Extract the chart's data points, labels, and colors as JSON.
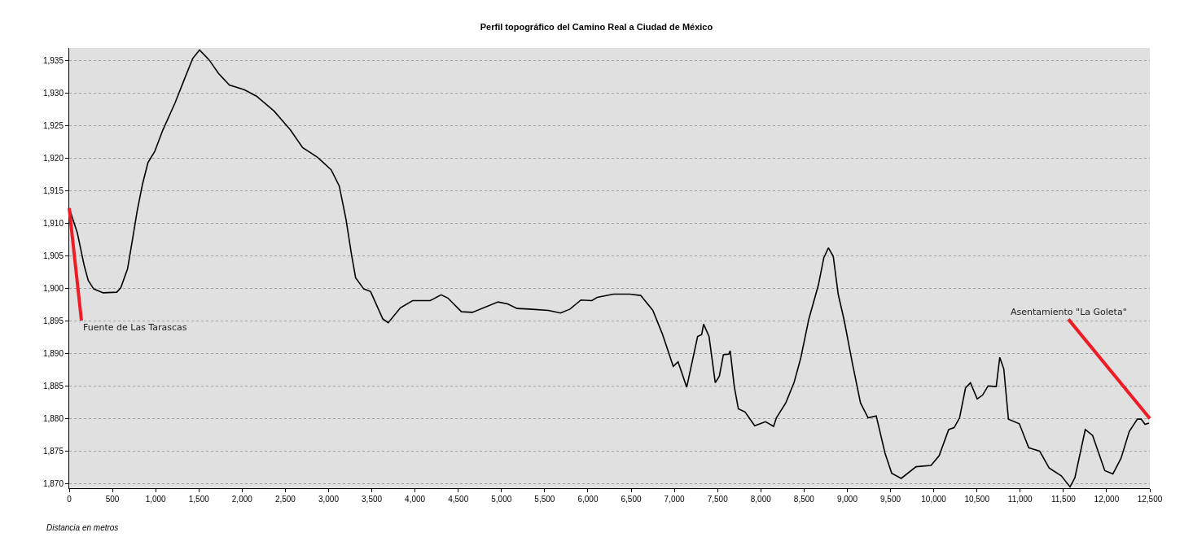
{
  "chart_data": {
    "type": "line",
    "title": "Perfil topográfico del Camino Real a Ciudad de México",
    "xlabel": "Distancia en metros",
    "x": [
      0,
      94,
      173,
      220,
      283,
      393,
      550,
      597,
      675,
      738,
      785,
      848,
      911,
      989,
      1083,
      1225,
      1335,
      1429,
      1507,
      1617,
      1727,
      1853,
      2025,
      2167,
      2371,
      2559,
      2700,
      2873,
      3030,
      3124,
      3203,
      3266,
      3313,
      3407,
      3486,
      3627,
      3690,
      3831,
      3972,
      4176,
      4302,
      4380,
      4537,
      4663,
      4961,
      5071,
      5181,
      5322,
      5542,
      5683,
      5793,
      5919,
      6045,
      6107,
      6295,
      6484,
      6610,
      6751,
      6861,
      6987,
      7043,
      7143,
      7269,
      7316,
      7338,
      7401,
      7473,
      7520,
      7567,
      7630,
      7646,
      7693,
      7740,
      7818,
      7929,
      8054,
      8148,
      8180,
      8289,
      8384,
      8462,
      8556,
      8666,
      8729,
      8782,
      8838,
      8895,
      8964,
      9059,
      9153,
      9241,
      9335,
      9436,
      9514,
      9624,
      9796,
      9969,
      10063,
      10173,
      10236,
      10299,
      10368,
      10425,
      10503,
      10566,
      10629,
      10723,
      10764,
      10811,
      10864,
      10990,
      11099,
      11225,
      11335,
      11476,
      11577,
      11633,
      11753,
      11838,
      11979,
      12073,
      12167,
      12262,
      12356,
      12400,
      12445,
      12490
    ],
    "series": [
      {
        "color": "#000000",
        "values": [
          1912.3,
          1908.5,
          1903.5,
          1901.2,
          1899.9,
          1899.3,
          1899.4,
          1900.1,
          1903.0,
          1908.0,
          1911.8,
          1916.0,
          1919.3,
          1921.0,
          1924.3,
          1928.5,
          1932.2,
          1935.3,
          1936.6,
          1935.1,
          1933.0,
          1931.2,
          1930.5,
          1929.5,
          1927.2,
          1924.3,
          1921.6,
          1920.1,
          1918.2,
          1915.7,
          1910.5,
          1905.1,
          1901.6,
          1899.9,
          1899.5,
          1895.3,
          1894.7,
          1897.0,
          1898.1,
          1898.1,
          1899.0,
          1898.5,
          1896.4,
          1896.3,
          1897.9,
          1897.6,
          1896.9,
          1896.8,
          1896.6,
          1896.2,
          1896.8,
          1898.2,
          1898.1,
          1898.6,
          1899.1,
          1899.1,
          1898.9,
          1896.6,
          1893.0,
          1888.0,
          1888.7,
          1884.8,
          1892.6,
          1892.9,
          1894.5,
          1892.6,
          1885.5,
          1886.5,
          1889.8,
          1889.9,
          1890.4,
          1884.9,
          1881.5,
          1881.0,
          1878.9,
          1879.5,
          1878.8,
          1880.1,
          1882.4,
          1885.5,
          1889.3,
          1895.3,
          1900.5,
          1904.7,
          1906.2,
          1904.9,
          1899.1,
          1895.1,
          1888.5,
          1882.4,
          1880.1,
          1880.4,
          1874.7,
          1871.6,
          1870.8,
          1872.6,
          1872.8,
          1874.3,
          1878.3,
          1878.6,
          1880.1,
          1884.7,
          1885.5,
          1883.0,
          1883.6,
          1885.0,
          1884.9,
          1889.4,
          1887.6,
          1879.9,
          1879.2,
          1875.5,
          1875.0,
          1872.4,
          1871.2,
          1869.5,
          1870.9,
          1878.3,
          1877.4,
          1872.0,
          1871.5,
          1873.9,
          1878.0,
          1879.9,
          1879.9,
          1879.1,
          1879.3
        ]
      }
    ],
    "xlim": [
      0,
      12500
    ],
    "xticks": [
      0,
      500,
      {
        "value": 1000,
        "label": "1,000"
      },
      {
        "value": 1500,
        "label": "1,500"
      },
      {
        "value": 2000,
        "label": "2,000"
      },
      {
        "value": 2500,
        "label": "2,500"
      },
      {
        "value": 3000,
        "label": "3,000"
      },
      {
        "value": 3500,
        "label": "3,500"
      },
      {
        "value": 4000,
        "label": "4,000"
      },
      {
        "value": 4500,
        "label": "4,500"
      },
      {
        "value": 5000,
        "label": "5,000"
      },
      {
        "value": 5500,
        "label": "5,500"
      },
      {
        "value": 6000,
        "label": "6,000"
      },
      {
        "value": 6500,
        "label": "6,500"
      },
      {
        "value": 7000,
        "label": "7,000"
      },
      {
        "value": 7500,
        "label": "7,500"
      },
      {
        "value": 8000,
        "label": "8,000"
      },
      {
        "value": 8500,
        "label": "8,500"
      },
      {
        "value": 9000,
        "label": "9,000"
      },
      {
        "value": 9500,
        "label": "9,500"
      },
      {
        "value": 10000,
        "label": "10,000"
      },
      {
        "value": 10500,
        "label": "10,500"
      },
      {
        "value": 11000,
        "label": "11,000"
      },
      {
        "value": 11500,
        "label": "11,500"
      },
      {
        "value": 12000,
        "label": "12,000"
      },
      {
        "value": 12500,
        "label": "12,500"
      }
    ],
    "ylim": [
      1869.3,
      1936.9
    ],
    "yticks": [
      {
        "value": 1870,
        "label": "1,870"
      },
      {
        "value": 1875,
        "label": "1,875"
      },
      {
        "value": 1880,
        "label": "1,880"
      },
      {
        "value": 1885,
        "label": "1,885"
      },
      {
        "value": 1890,
        "label": "1,890"
      },
      {
        "value": 1895,
        "label": "1,895"
      },
      {
        "value": 1900,
        "label": "1,900"
      },
      {
        "value": 1905,
        "label": "1,905"
      },
      {
        "value": 1910,
        "label": "1,910"
      },
      {
        "value": 1915,
        "label": "1,915"
      },
      {
        "value": 1920,
        "label": "1,920"
      },
      {
        "value": 1925,
        "label": "1,925"
      },
      {
        "value": 1930,
        "label": "1,930"
      },
      {
        "value": 1935,
        "label": "1,935"
      }
    ],
    "grid": "y",
    "marker": "none",
    "line_style": "solid",
    "annotations": [
      {
        "text": "Fuente de Las Tarascas",
        "x": 0,
        "y": 1912.3
      },
      {
        "text": "Asentamiento \"La Goleta\"",
        "x": 12500,
        "y": 1880
      }
    ]
  }
}
